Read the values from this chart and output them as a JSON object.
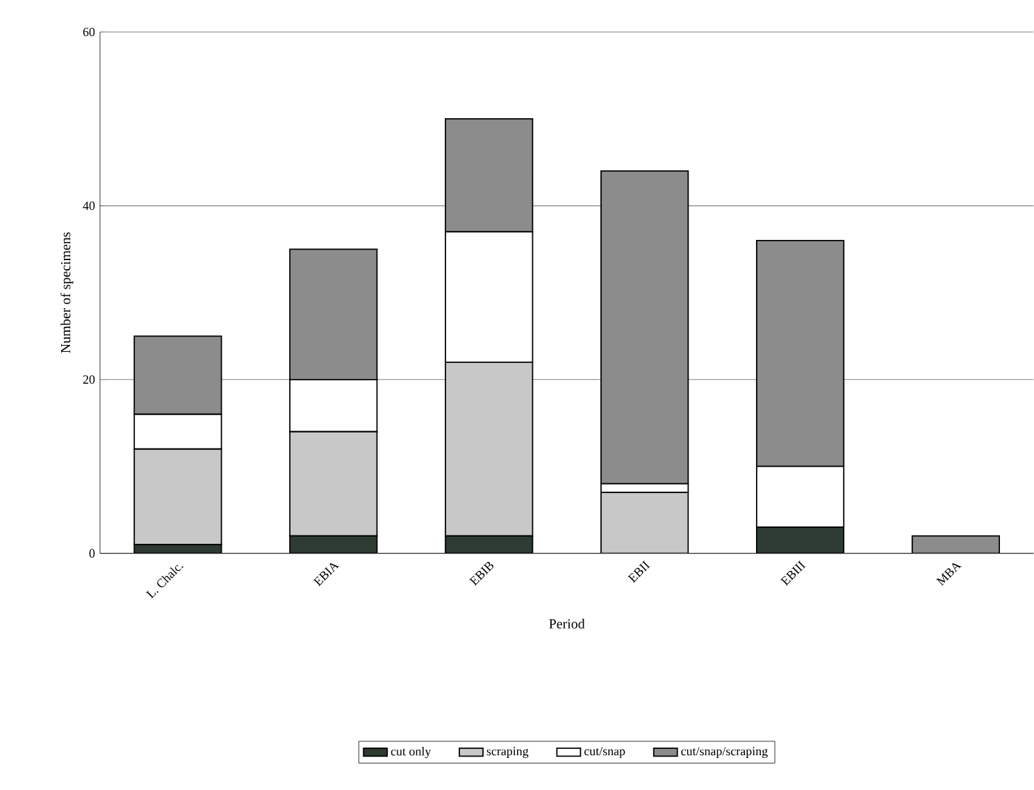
{
  "chart_data": {
    "type": "bar",
    "stacked": true,
    "xlabel": "Period",
    "ylabel": "Number of specimens",
    "categories": [
      "L. Chalc.",
      "EBIA",
      "EBIB",
      "EBII",
      "EBIII",
      "MBA"
    ],
    "series": [
      {
        "name": "cut only",
        "color": "#2e3b33",
        "values": [
          1,
          2,
          2,
          0,
          3,
          0
        ]
      },
      {
        "name": "scraping",
        "color": "#c8c8c8",
        "values": [
          11,
          12,
          20,
          7,
          0,
          0
        ]
      },
      {
        "name": "cut/snap",
        "color": "#ffffff",
        "values": [
          4,
          6,
          15,
          1,
          7,
          0
        ]
      },
      {
        "name": "cut/snap/scraping",
        "color": "#8c8c8c",
        "values": [
          9,
          15,
          13,
          36,
          26,
          2
        ]
      }
    ],
    "ylim": [
      0,
      60
    ],
    "yticks": [
      0,
      20,
      40,
      60
    ],
    "grid": "y",
    "legend": "bottom"
  }
}
